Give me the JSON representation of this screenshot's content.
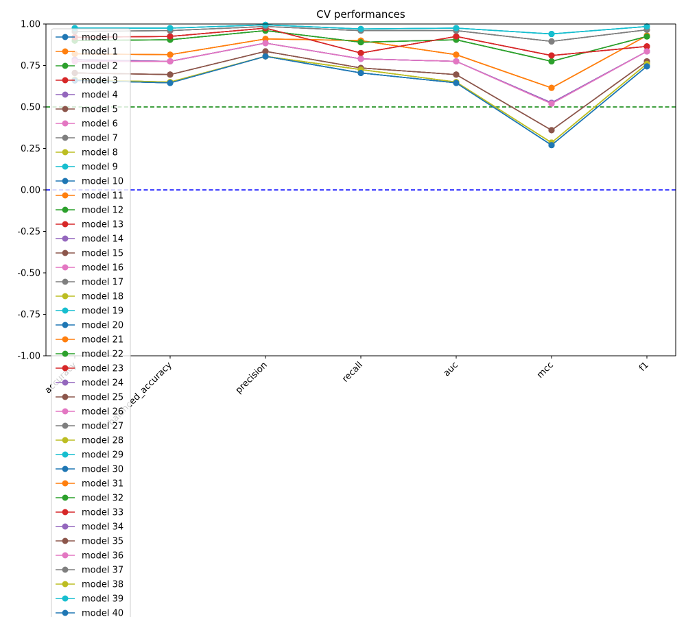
{
  "chart_data": {
    "type": "line",
    "title": "CV performances",
    "xlabel": "",
    "ylabel": "",
    "categories": [
      "accuracy",
      "balanced_accuracy",
      "precision",
      "recall",
      "auc",
      "mcc",
      "f1"
    ],
    "ylim": [
      -1.0,
      1.0
    ],
    "yticks": [
      "-1.00",
      "-0.75",
      "-0.50",
      "-0.25",
      "0.00",
      "0.25",
      "0.50",
      "0.75",
      "1.00"
    ],
    "grid": false,
    "legend_position": "upper-left",
    "reference_lines": [
      {
        "y": 0.5,
        "color": "#008000",
        "style": "dashed"
      },
      {
        "y": 0.0,
        "color": "#0000ff",
        "style": "dashed"
      }
    ],
    "palette": [
      "#1f77b4",
      "#ff7f0e",
      "#2ca02c",
      "#d62728",
      "#9467bd",
      "#8c564b",
      "#e377c2",
      "#7f7f7f",
      "#bcbd22",
      "#17becf"
    ],
    "profiles": {
      "A": [
        0.66,
        0.645,
        0.805,
        0.705,
        0.645,
        0.27,
        0.745
      ],
      "B": [
        0.82,
        0.815,
        0.91,
        0.9,
        0.815,
        0.615,
        0.93
      ],
      "C": [
        0.9,
        0.905,
        0.96,
        0.89,
        0.905,
        0.775,
        0.925
      ],
      "D": [
        0.92,
        0.925,
        0.975,
        0.825,
        0.925,
        0.81,
        0.865
      ],
      "E": [
        0.785,
        0.775,
        0.885,
        0.79,
        0.775,
        0.525,
        0.835
      ],
      "F": [
        0.705,
        0.695,
        0.835,
        0.735,
        0.695,
        0.36,
        0.775
      ],
      "G": [
        0.775,
        0.775,
        0.885,
        0.79,
        0.775,
        0.52,
        0.835
      ],
      "H": [
        0.955,
        0.96,
        0.985,
        0.96,
        0.96,
        0.895,
        0.965
      ],
      "I": [
        0.665,
        0.65,
        0.805,
        0.725,
        0.65,
        0.285,
        0.76
      ],
      "J": [
        0.975,
        0.975,
        0.995,
        0.97,
        0.975,
        0.94,
        0.985
      ]
    },
    "series": [
      {
        "name": "model 0",
        "profile": "A"
      },
      {
        "name": "model 1",
        "profile": "B"
      },
      {
        "name": "model 2",
        "profile": "C"
      },
      {
        "name": "model 3",
        "profile": "D"
      },
      {
        "name": "model 4",
        "profile": "E"
      },
      {
        "name": "model 5",
        "profile": "F"
      },
      {
        "name": "model 6",
        "profile": "G"
      },
      {
        "name": "model 7",
        "profile": "H"
      },
      {
        "name": "model 8",
        "profile": "I"
      },
      {
        "name": "model 9",
        "profile": "J"
      },
      {
        "name": "model 10",
        "profile": "A"
      },
      {
        "name": "model 11",
        "profile": "B"
      },
      {
        "name": "model 12",
        "profile": "C"
      },
      {
        "name": "model 13",
        "profile": "D"
      },
      {
        "name": "model 14",
        "profile": "E"
      },
      {
        "name": "model 15",
        "profile": "F"
      },
      {
        "name": "model 16",
        "profile": "G"
      },
      {
        "name": "model 17",
        "profile": "H"
      },
      {
        "name": "model 18",
        "profile": "I"
      },
      {
        "name": "model 19",
        "profile": "J"
      },
      {
        "name": "model 20",
        "profile": "A"
      },
      {
        "name": "model 21",
        "profile": "B"
      },
      {
        "name": "model 22",
        "profile": "C"
      },
      {
        "name": "model 23",
        "profile": "D"
      },
      {
        "name": "model 24",
        "profile": "E"
      },
      {
        "name": "model 25",
        "profile": "F"
      },
      {
        "name": "model 26",
        "profile": "G"
      },
      {
        "name": "model 27",
        "profile": "H"
      },
      {
        "name": "model 28",
        "profile": "I"
      },
      {
        "name": "model 29",
        "profile": "J"
      },
      {
        "name": "model 30",
        "profile": "A"
      },
      {
        "name": "model 31",
        "profile": "B"
      },
      {
        "name": "model 32",
        "profile": "C"
      },
      {
        "name": "model 33",
        "profile": "D"
      },
      {
        "name": "model 34",
        "profile": "E"
      },
      {
        "name": "model 35",
        "profile": "F"
      },
      {
        "name": "model 36",
        "profile": "G"
      },
      {
        "name": "model 37",
        "profile": "H"
      },
      {
        "name": "model 38",
        "profile": "I"
      },
      {
        "name": "model 39",
        "profile": "J"
      },
      {
        "name": "model 40",
        "profile": "A"
      }
    ]
  }
}
